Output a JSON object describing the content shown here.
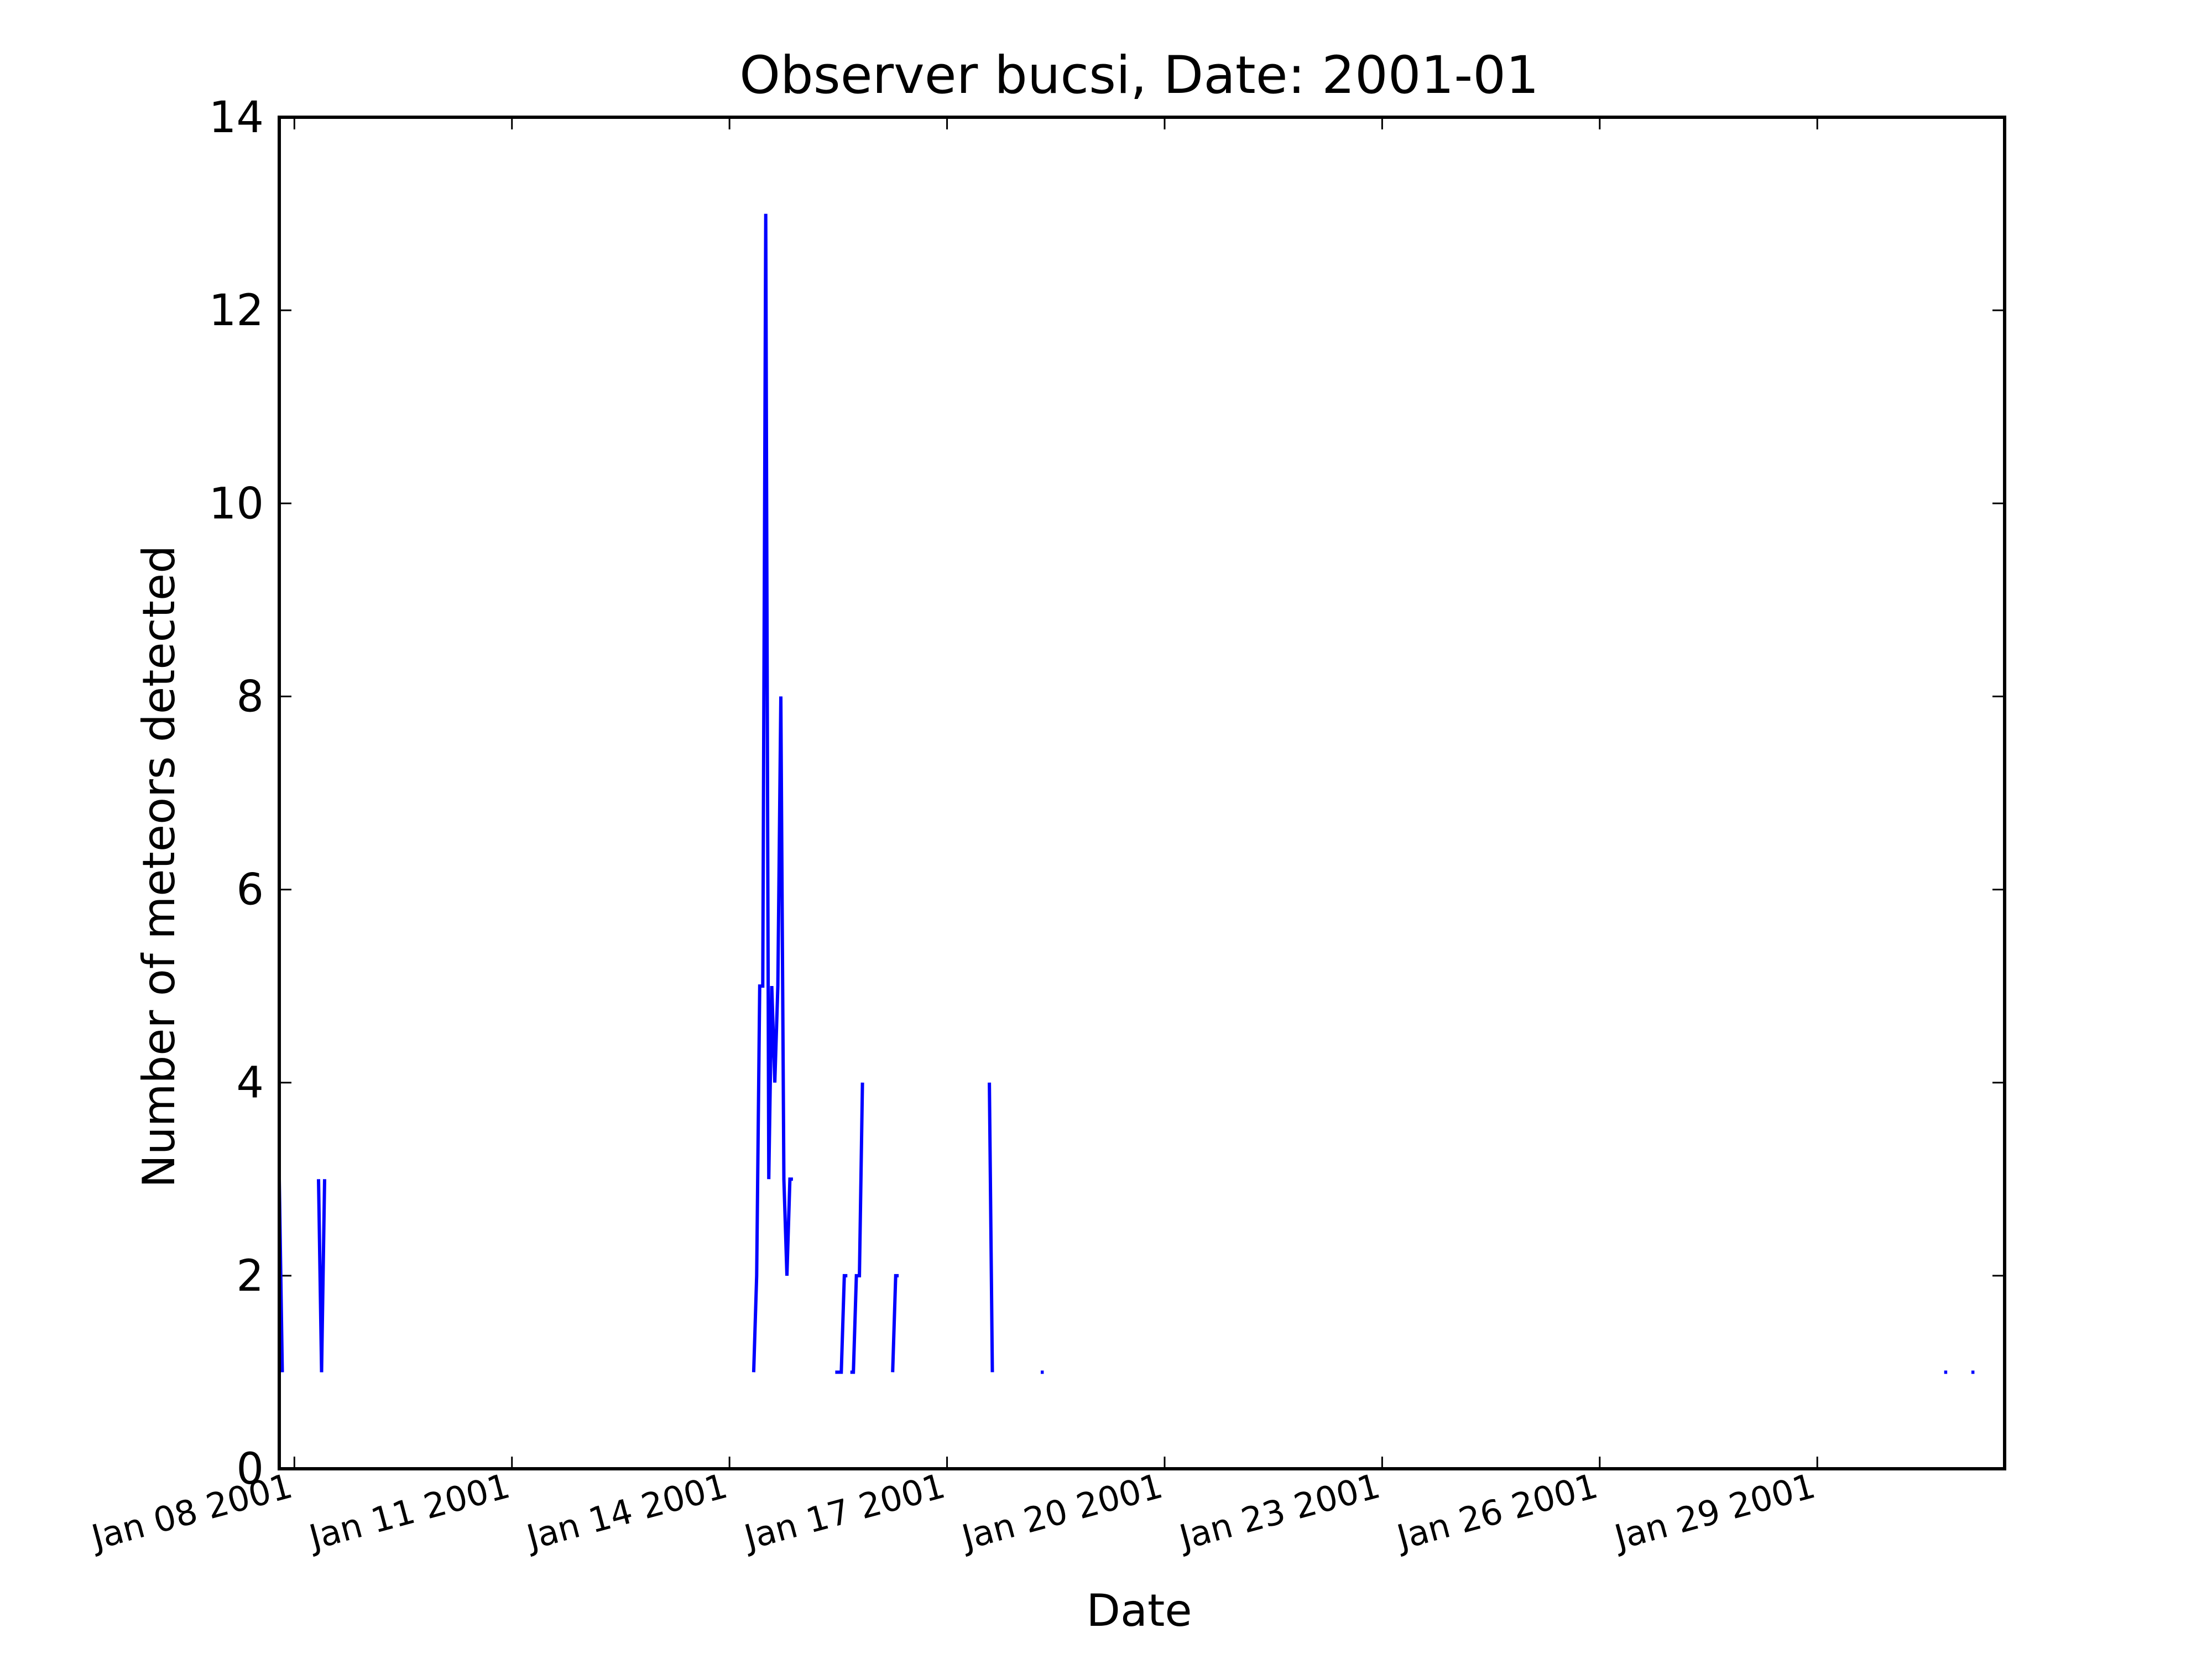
{
  "chart_data": {
    "type": "line",
    "title": "Observer bucsi, Date: 2001-01",
    "xlabel": "Date",
    "ylabel": "Number of meteors detected",
    "xlim": [
      "2001-01-07T19:00",
      "2001-01-31T14:00"
    ],
    "ylim": [
      0,
      14
    ],
    "yticks": [
      0,
      2,
      4,
      6,
      8,
      10,
      12,
      14
    ],
    "xticks": [
      {
        "date": "2001-01-08",
        "label": "Jan 08 2001"
      },
      {
        "date": "2001-01-11",
        "label": "Jan 11 2001"
      },
      {
        "date": "2001-01-14",
        "label": "Jan 14 2001"
      },
      {
        "date": "2001-01-17",
        "label": "Jan 17 2001"
      },
      {
        "date": "2001-01-20",
        "label": "Jan 20 2001"
      },
      {
        "date": "2001-01-23",
        "label": "Jan 23 2001"
      },
      {
        "date": "2001-01-26",
        "label": "Jan 26 2001"
      },
      {
        "date": "2001-01-29",
        "label": "Jan 29 2001"
      }
    ],
    "grid": false,
    "line_color": "#0000ff",
    "series": [
      {
        "segments": [
          [
            [
              "2001-01-07T19:00",
              3
            ],
            [
              "2001-01-07T20:00",
              1
            ]
          ],
          [
            [
              "2001-01-08T08:00",
              3
            ],
            [
              "2001-01-08T09:00",
              1
            ],
            [
              "2001-01-08T10:00",
              3
            ]
          ],
          [
            [
              "2001-01-14T08:00",
              1
            ],
            [
              "2001-01-14T09:00",
              2
            ],
            [
              "2001-01-14T10:00",
              5
            ],
            [
              "2001-01-14T11:00",
              5
            ],
            [
              "2001-01-14T12:00",
              13
            ],
            [
              "2001-01-14T13:00",
              3
            ],
            [
              "2001-01-14T14:00",
              5
            ],
            [
              "2001-01-14T15:00",
              4
            ],
            [
              "2001-01-14T16:00",
              5
            ],
            [
              "2001-01-14T17:00",
              8
            ],
            [
              "2001-01-14T18:00",
              3
            ],
            [
              "2001-01-14T19:00",
              2
            ],
            [
              "2001-01-14T20:00",
              3
            ],
            [
              "2001-01-14T21:00",
              3
            ]
          ],
          [
            [
              "2001-01-15T11:00",
              1
            ],
            [
              "2001-01-15T13:00",
              1
            ],
            [
              "2001-01-15T14:00",
              2
            ],
            [
              "2001-01-15T15:00",
              2
            ]
          ],
          [
            [
              "2001-01-15T16:00",
              1
            ],
            [
              "2001-01-15T17:00",
              1
            ],
            [
              "2001-01-15T18:00",
              2
            ],
            [
              "2001-01-15T19:00",
              2
            ],
            [
              "2001-01-15T20:00",
              4
            ]
          ],
          [
            [
              "2001-01-16T06:00",
              1
            ],
            [
              "2001-01-16T07:00",
              2
            ],
            [
              "2001-01-16T08:00",
              2
            ]
          ],
          [
            [
              "2001-01-17T14:00",
              4
            ],
            [
              "2001-01-17T15:00",
              1
            ]
          ],
          [
            [
              "2001-01-18T07:00",
              1
            ],
            [
              "2001-01-18T08:00",
              1
            ]
          ],
          [
            [
              "2001-01-30T18:00",
              1
            ],
            [
              "2001-01-30T19:00",
              1
            ]
          ],
          [
            [
              "2001-01-31T03:00",
              1
            ],
            [
              "2001-01-31T04:00",
              1
            ]
          ]
        ]
      }
    ]
  }
}
